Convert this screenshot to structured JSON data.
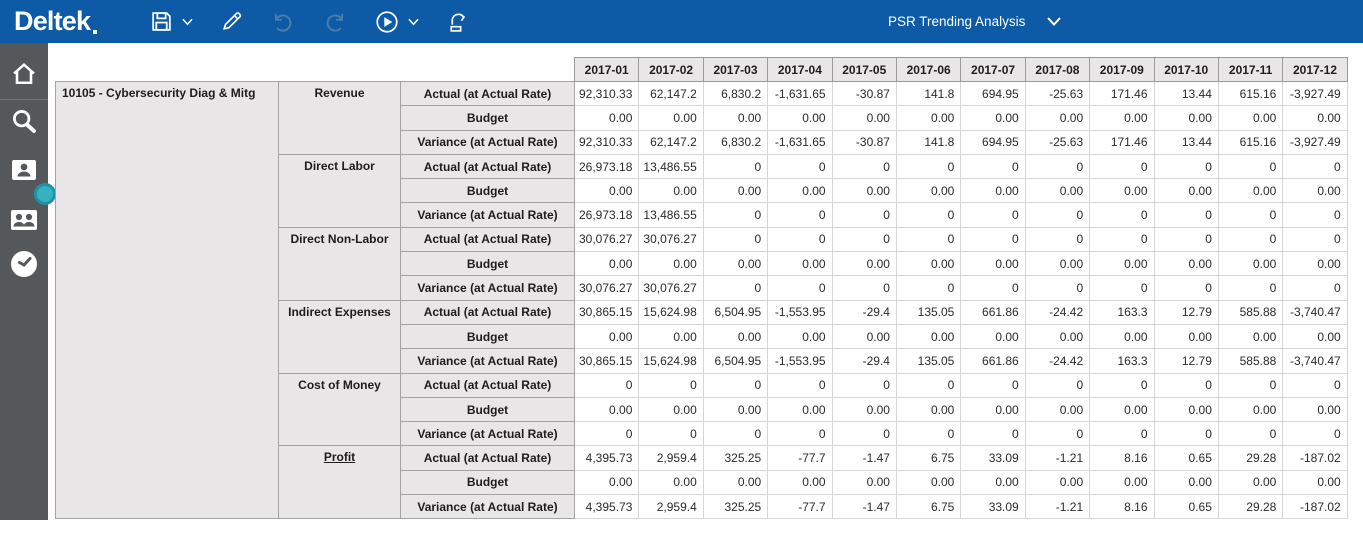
{
  "topbar": {
    "logo_text": "Deltek",
    "report_title": "PSR Trending Analysis",
    "toolbar_icons": [
      "save-icon",
      "save-dropdown-chevron",
      "edit-pencil-icon",
      "undo-icon",
      "redo-icon",
      "run-play-icon",
      "run-dropdown-chevron",
      "publish-export-icon"
    ],
    "title_dropdown_icon": "chevron-down-icon"
  },
  "sidebar": {
    "icons": [
      "home-icon",
      "search-icon",
      "employee-card-icon",
      "team-card-icon",
      "timesheet-clock-icon"
    ],
    "drag_handle": "panel-drag-handle"
  },
  "colors": {
    "topbar_blue": "#0d5aa7",
    "sidebar_gray": "#55585a",
    "handle_teal": "#35b1c0",
    "header_gray": "#e8e6e6",
    "disabled_icon_blue": "#4c7cab"
  },
  "main": {
    "table": {
      "project": "10105 - Cybersecurity Diag & Mitg",
      "months": [
        "2017-01",
        "2017-02",
        "2017-03",
        "2017-04",
        "2017-05",
        "2017-06",
        "2017-07",
        "2017-08",
        "2017-09",
        "2017-10",
        "2017-11",
        "2017-12"
      ],
      "row_types": [
        "Actual (at Actual Rate)",
        "Budget",
        "Variance (at Actual Rate)"
      ],
      "budget": [
        "0.00",
        "0.00",
        "0.00",
        "0.00",
        "0.00",
        "0.00",
        "0.00",
        "0.00",
        "0.00",
        "0.00",
        "0.00",
        "0.00"
      ],
      "groups": [
        {
          "category": "Revenue",
          "underline": false,
          "actual": [
            "92,310.33",
            "62,147.2",
            "6,830.2",
            "-1,631.65",
            "-30.87",
            "141.8",
            "694.95",
            "-25.63",
            "171.46",
            "13.44",
            "615.16",
            "-3,927.49"
          ],
          "variance": [
            "92,310.33",
            "62,147.2",
            "6,830.2",
            "-1,631.65",
            "-30.87",
            "141.8",
            "694.95",
            "-25.63",
            "171.46",
            "13.44",
            "615.16",
            "-3,927.49"
          ]
        },
        {
          "category": "Direct Labor",
          "underline": false,
          "actual": [
            "26,973.18",
            "13,486.55",
            "0",
            "0",
            "0",
            "0",
            "0",
            "0",
            "0",
            "0",
            "0",
            "0"
          ],
          "variance": [
            "26,973.18",
            "13,486.55",
            "0",
            "0",
            "0",
            "0",
            "0",
            "0",
            "0",
            "0",
            "0",
            "0"
          ]
        },
        {
          "category": "Direct Non-Labor",
          "underline": false,
          "actual": [
            "30,076.27",
            "30,076.27",
            "0",
            "0",
            "0",
            "0",
            "0",
            "0",
            "0",
            "0",
            "0",
            "0"
          ],
          "variance": [
            "30,076.27",
            "30,076.27",
            "0",
            "0",
            "0",
            "0",
            "0",
            "0",
            "0",
            "0",
            "0",
            "0"
          ]
        },
        {
          "category": "Indirect Expenses",
          "underline": false,
          "actual": [
            "30,865.15",
            "15,624.98",
            "6,504.95",
            "-1,553.95",
            "-29.4",
            "135.05",
            "661.86",
            "-24.42",
            "163.3",
            "12.79",
            "585.88",
            "-3,740.47"
          ],
          "variance": [
            "30,865.15",
            "15,624.98",
            "6,504.95",
            "-1,553.95",
            "-29.4",
            "135.05",
            "661.86",
            "-24.42",
            "163.3",
            "12.79",
            "585.88",
            "-3,740.47"
          ]
        },
        {
          "category": "Cost of Money",
          "underline": false,
          "actual": [
            "0",
            "0",
            "0",
            "0",
            "0",
            "0",
            "0",
            "0",
            "0",
            "0",
            "0",
            "0"
          ],
          "variance": [
            "0",
            "0",
            "0",
            "0",
            "0",
            "0",
            "0",
            "0",
            "0",
            "0",
            "0",
            "0"
          ]
        },
        {
          "category": "Profit",
          "underline": true,
          "actual": [
            "4,395.73",
            "2,959.4",
            "325.25",
            "-77.7",
            "-1.47",
            "6.75",
            "33.09",
            "-1.21",
            "8.16",
            "0.65",
            "29.28",
            "-187.02"
          ],
          "variance": [
            "4,395.73",
            "2,959.4",
            "325.25",
            "-77.7",
            "-1.47",
            "6.75",
            "33.09",
            "-1.21",
            "8.16",
            "0.65",
            "29.28",
            "-187.02"
          ]
        }
      ]
    }
  }
}
